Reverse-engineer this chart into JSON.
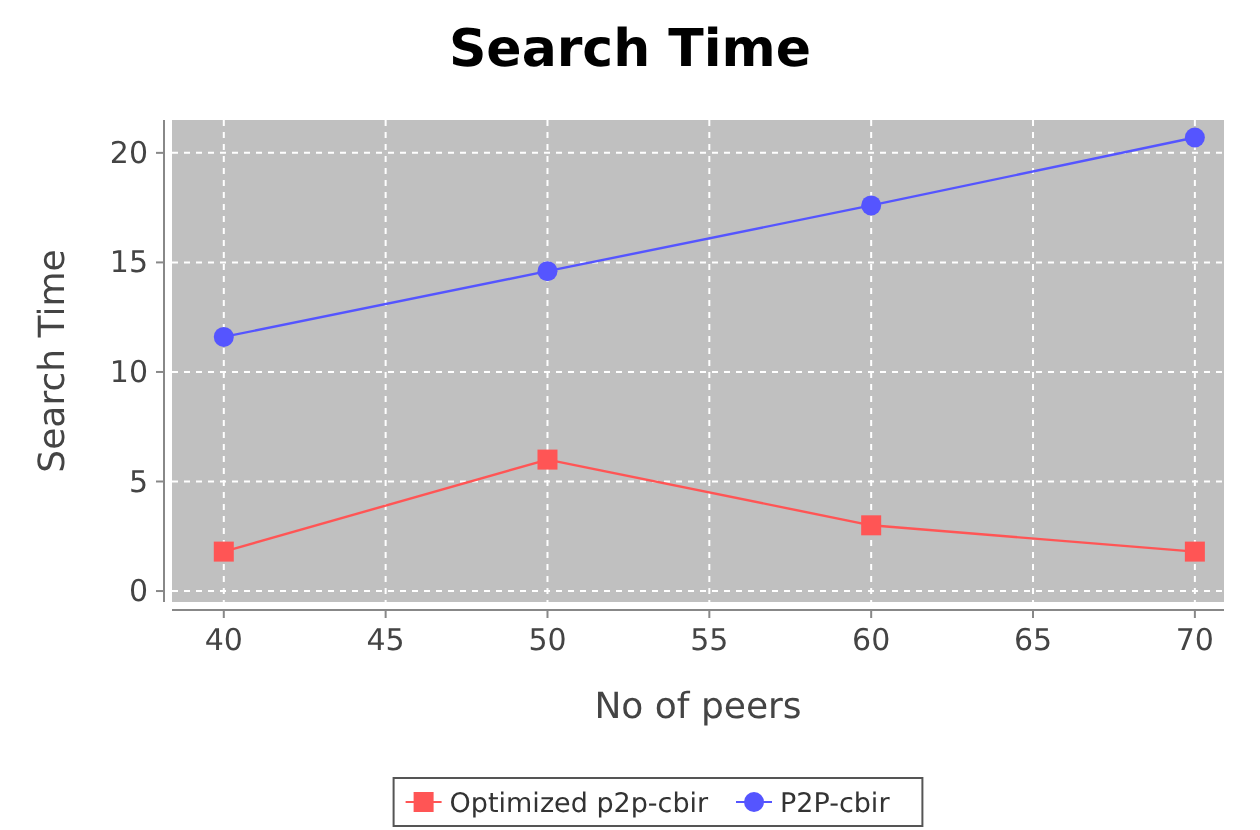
{
  "chart_data": {
    "type": "line",
    "title": "Search Time",
    "xlabel": "No of peers",
    "ylabel": "Search Time",
    "xlim": [
      38.4,
      70.9
    ],
    "ylim": [
      -0.5,
      21.5
    ],
    "xticks": [
      40,
      45,
      50,
      55,
      60,
      65,
      70
    ],
    "yticks": [
      0,
      5,
      10,
      15,
      20
    ],
    "grid": true,
    "legend": "bottom",
    "series": [
      {
        "name": "Optimized p2p-cbir",
        "color": "#ff5555",
        "marker": "square",
        "x": [
          40,
          50,
          60,
          70
        ],
        "values": [
          1.8,
          6.0,
          3.0,
          1.8
        ]
      },
      {
        "name": "P2P-cbir",
        "color": "#5555ff",
        "marker": "circle",
        "x": [
          40,
          50,
          60,
          70
        ],
        "values": [
          11.6,
          14.6,
          17.6,
          20.7
        ]
      }
    ]
  }
}
